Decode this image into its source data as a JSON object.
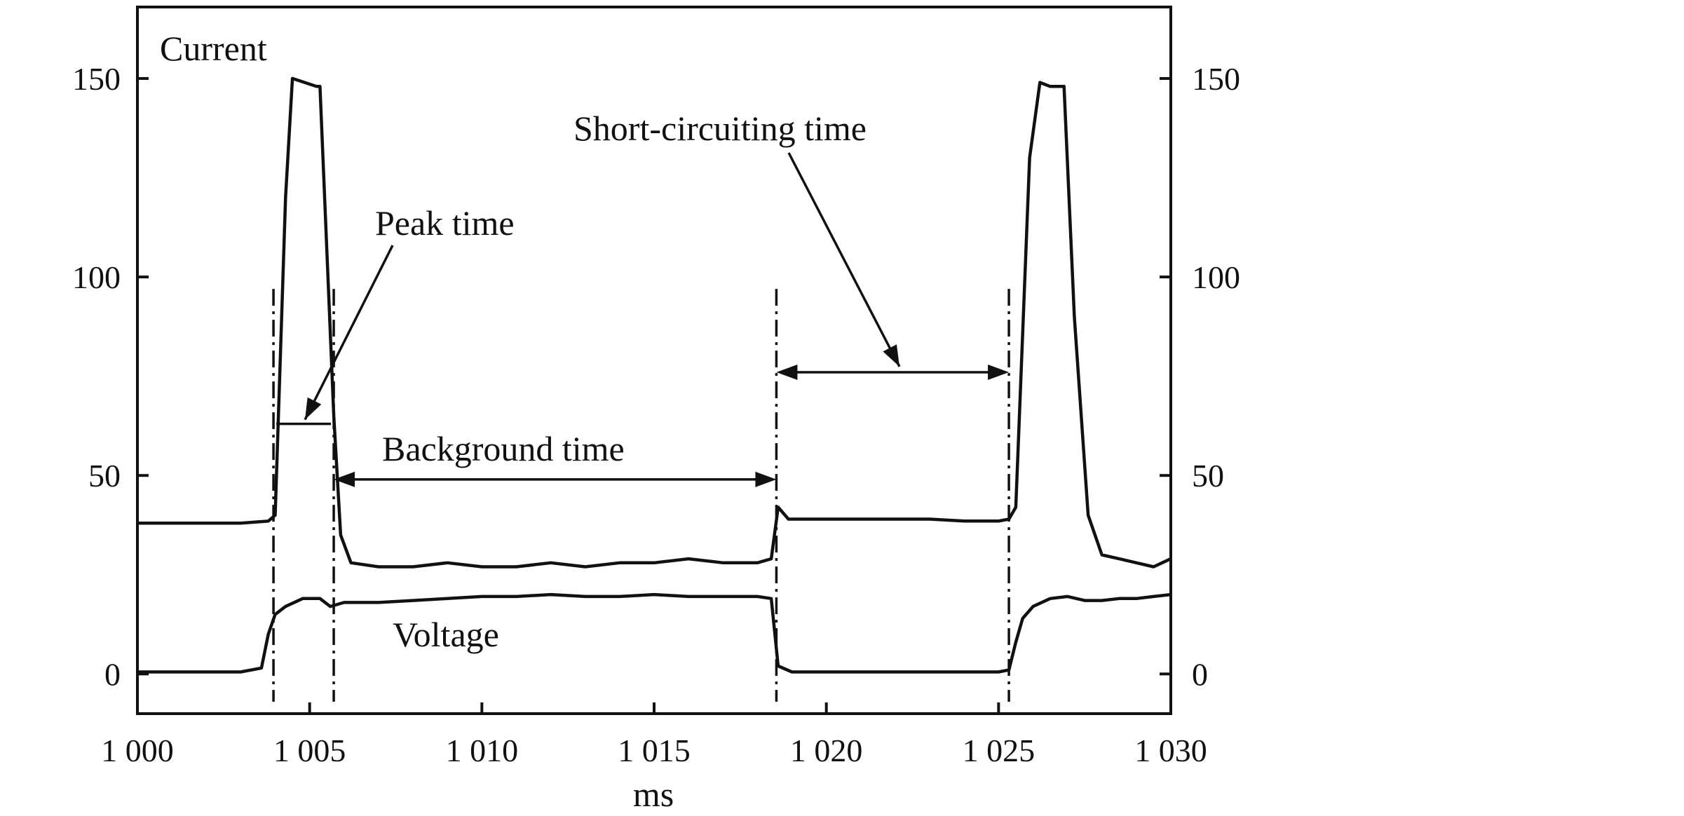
{
  "chart_data": {
    "type": "line",
    "xlabel": "ms",
    "ylabel": "",
    "xlim": [
      1000,
      1030
    ],
    "ylim": [
      -10,
      168
    ],
    "x_ticks": [
      1000,
      1005,
      1010,
      1015,
      1020,
      1025,
      1030
    ],
    "x_tick_labels": [
      "1 000",
      "1 005",
      "1 010",
      "1 015",
      "1 020",
      "1 025",
      "1 030"
    ],
    "y_ticks": [
      0,
      50,
      100,
      150
    ],
    "y_tick_labels": [
      "0",
      "50",
      "100",
      "150"
    ],
    "y_right_tick_labels": [
      "0",
      "50",
      "100",
      "150"
    ],
    "grid": false,
    "series": [
      {
        "name": "Current",
        "x": [
          1000,
          1001,
          1002,
          1003,
          1003.8,
          1004.0,
          1004.3,
          1004.5,
          1005.2,
          1005.3,
          1005.7,
          1005.9,
          1006.2,
          1007,
          1008,
          1009,
          1010,
          1011,
          1012,
          1013,
          1014,
          1015,
          1016,
          1017,
          1018,
          1018.4,
          1018.6,
          1018.9,
          1019.5,
          1020,
          1021,
          1022,
          1023,
          1024,
          1025,
          1025.3,
          1025.5,
          1025.9,
          1026.2,
          1026.5,
          1026.9,
          1027.2,
          1027.6,
          1028,
          1028.5,
          1029,
          1029.5,
          1030
        ],
        "y": [
          38,
          38,
          38,
          38,
          38.5,
          40,
          120,
          150,
          148,
          148,
          65,
          35,
          28,
          27,
          27,
          28,
          27,
          27,
          28,
          27,
          28,
          28,
          29,
          28,
          28,
          29,
          42,
          39,
          39,
          39,
          39,
          39,
          39,
          38.5,
          38.5,
          39,
          42,
          130,
          149,
          148,
          148,
          90,
          40,
          30,
          29,
          28,
          27,
          29
        ]
      },
      {
        "name": "Voltage",
        "x": [
          1000,
          1001,
          1002,
          1003,
          1003.6,
          1003.8,
          1004.0,
          1004.3,
          1004.8,
          1005.3,
          1005.6,
          1006,
          1007,
          1008,
          1009,
          1010,
          1011,
          1012,
          1013,
          1014,
          1015,
          1016,
          1017,
          1018,
          1018.4,
          1018.6,
          1019,
          1020,
          1021,
          1022,
          1023,
          1024,
          1025,
          1025.3,
          1025.5,
          1025.7,
          1026,
          1026.5,
          1027,
          1027.5,
          1028,
          1028.5,
          1029,
          1029.5,
          1030
        ],
        "y": [
          0.5,
          0.5,
          0.5,
          0.5,
          1.5,
          10,
          15,
          17,
          19,
          19,
          17,
          18,
          18,
          18.5,
          19,
          19.5,
          19.5,
          20,
          19.5,
          19.5,
          20,
          19.5,
          19.5,
          19.5,
          19,
          2,
          0.5,
          0.5,
          0.5,
          0.5,
          0.5,
          0.5,
          0.5,
          1,
          8,
          14,
          17,
          19,
          19.5,
          18.5,
          18.5,
          19,
          19,
          19.5,
          20
        ]
      }
    ],
    "annotations": [
      {
        "text": "Current"
      },
      {
        "text": "Voltage"
      },
      {
        "text": "Peak time"
      },
      {
        "text": "Background time"
      },
      {
        "text": "Short-circuiting time"
      }
    ],
    "markers_x": [
      1003.95,
      1005.7,
      1018.55,
      1025.3
    ]
  }
}
